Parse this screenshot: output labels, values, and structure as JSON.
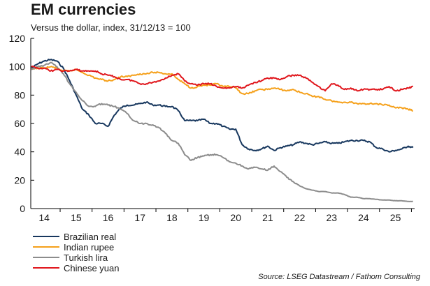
{
  "header": {
    "title": "EM currencies",
    "subtitle": "Versus the dollar, index, 31/12/13 = 100"
  },
  "footer": {
    "source": "Source: LSEG Datastream / Fathom Consulting"
  },
  "chart_data": {
    "type": "line",
    "title": "EM currencies",
    "subtitle": "Versus the dollar, index, 31/12/13 = 100",
    "xlabel": "",
    "ylabel": "",
    "x_domain": [
      2013.58,
      2025.6
    ],
    "ylim": [
      0,
      120
    ],
    "y_ticks": [
      0,
      20,
      40,
      60,
      80,
      100,
      120
    ],
    "x_tick_labels": [
      "14",
      "15",
      "16",
      "17",
      "18",
      "19",
      "20",
      "21",
      "22",
      "23",
      "24",
      "25"
    ],
    "x_tick_positions": [
      2014.0,
      2015.0,
      2016.0,
      2017.0,
      2018.0,
      2019.0,
      2020.0,
      2021.0,
      2022.0,
      2023.0,
      2024.0,
      2025.0
    ],
    "grid": false,
    "legend_position": "bottom-left",
    "series": [
      {
        "name": "Brazilian real",
        "color": "#17375e",
        "x": [
          2013.6,
          2013.8,
          2014.0,
          2014.2,
          2014.4,
          2014.6,
          2014.8,
          2015.0,
          2015.2,
          2015.4,
          2015.6,
          2015.8,
          2016.0,
          2016.2,
          2016.4,
          2016.6,
          2016.8,
          2017.0,
          2017.2,
          2017.4,
          2017.6,
          2017.8,
          2018.0,
          2018.2,
          2018.4,
          2018.6,
          2018.8,
          2019.0,
          2019.2,
          2019.4,
          2019.6,
          2019.8,
          2020.0,
          2020.2,
          2020.4,
          2020.6,
          2020.8,
          2021.0,
          2021.2,
          2021.4,
          2021.6,
          2021.8,
          2022.0,
          2022.2,
          2022.4,
          2022.6,
          2022.8,
          2023.0,
          2023.2,
          2023.4,
          2023.6,
          2023.8,
          2024.0,
          2024.2,
          2024.4,
          2024.6,
          2024.8,
          2025.0,
          2025.2,
          2025.4,
          2025.55
        ],
        "values": [
          99,
          102,
          104,
          105,
          104,
          99,
          90,
          80,
          70,
          66,
          60,
          60,
          58,
          66,
          71,
          73,
          73,
          74,
          75,
          73,
          73,
          72,
          72,
          69,
          62,
          62,
          62,
          63,
          60,
          60,
          58,
          56,
          56,
          45,
          42,
          41,
          42,
          44,
          41,
          43,
          44,
          45,
          47,
          46,
          45,
          46,
          47,
          46,
          46,
          47,
          48,
          48,
          48,
          47,
          43,
          42,
          40,
          41,
          42,
          44,
          43
        ]
      },
      {
        "name": "Indian rupee",
        "color": "#f5a01a",
        "x": [
          2013.6,
          2013.8,
          2014.0,
          2014.2,
          2014.4,
          2014.6,
          2014.8,
          2015.0,
          2015.2,
          2015.4,
          2015.6,
          2015.8,
          2016.0,
          2016.2,
          2016.4,
          2016.6,
          2016.8,
          2017.0,
          2017.2,
          2017.4,
          2017.6,
          2017.8,
          2018.0,
          2018.2,
          2018.4,
          2018.6,
          2018.8,
          2019.0,
          2019.2,
          2019.4,
          2019.6,
          2019.8,
          2020.0,
          2020.2,
          2020.4,
          2020.6,
          2020.8,
          2021.0,
          2021.2,
          2021.4,
          2021.6,
          2021.8,
          2022.0,
          2022.2,
          2022.4,
          2022.6,
          2022.8,
          2023.0,
          2023.2,
          2023.4,
          2023.6,
          2023.8,
          2024.0,
          2024.2,
          2024.4,
          2024.6,
          2024.8,
          2025.0,
          2025.2,
          2025.4,
          2025.55
        ],
        "values": [
          98,
          99,
          99,
          100,
          99,
          97,
          97,
          98,
          96,
          94,
          92,
          91,
          90,
          91,
          93,
          93,
          94,
          95,
          95,
          96,
          96,
          95,
          95,
          91,
          88,
          85,
          86,
          87,
          87,
          88,
          86,
          86,
          85,
          81,
          81,
          83,
          84,
          84,
          85,
          84,
          83,
          84,
          82,
          81,
          79,
          79,
          77,
          76,
          75,
          75,
          75,
          74,
          74,
          74,
          74,
          73,
          73,
          71,
          71,
          70,
          69
        ]
      },
      {
        "name": "Turkish lira",
        "color": "#8c8c8c",
        "x": [
          2013.6,
          2013.8,
          2014.0,
          2014.2,
          2014.4,
          2014.6,
          2014.8,
          2015.0,
          2015.2,
          2015.4,
          2015.6,
          2015.8,
          2016.0,
          2016.2,
          2016.4,
          2016.6,
          2016.8,
          2017.0,
          2017.2,
          2017.4,
          2017.6,
          2017.8,
          2018.0,
          2018.2,
          2018.4,
          2018.6,
          2018.8,
          2019.0,
          2019.2,
          2019.4,
          2019.6,
          2019.8,
          2020.0,
          2020.2,
          2020.4,
          2020.6,
          2020.8,
          2021.0,
          2021.2,
          2021.4,
          2021.6,
          2021.8,
          2022.0,
          2022.2,
          2022.4,
          2022.6,
          2022.8,
          2023.0,
          2023.2,
          2023.4,
          2023.6,
          2023.8,
          2024.0,
          2024.2,
          2024.4,
          2024.6,
          2024.8,
          2025.0,
          2025.2,
          2025.4,
          2025.55
        ],
        "values": [
          98,
          100,
          101,
          103,
          100,
          95,
          88,
          82,
          76,
          72,
          72,
          74,
          73,
          72,
          70,
          67,
          62,
          60,
          60,
          59,
          57,
          53,
          48,
          46,
          38,
          34,
          36,
          37,
          38,
          38,
          36,
          33,
          32,
          30,
          28,
          29,
          28,
          27,
          30,
          26,
          22,
          19,
          16,
          14,
          13,
          12,
          12,
          11,
          11,
          10,
          8,
          8,
          7,
          7,
          6.5,
          6,
          6,
          5.5,
          5.5,
          5,
          5
        ]
      },
      {
        "name": "Chinese yuan",
        "color": "#e0161c",
        "x": [
          2013.6,
          2013.8,
          2014.0,
          2014.2,
          2014.4,
          2014.6,
          2014.8,
          2015.0,
          2015.2,
          2015.4,
          2015.6,
          2015.8,
          2016.0,
          2016.2,
          2016.4,
          2016.6,
          2016.8,
          2017.0,
          2017.2,
          2017.4,
          2017.6,
          2017.8,
          2018.0,
          2018.2,
          2018.4,
          2018.6,
          2018.8,
          2019.0,
          2019.2,
          2019.4,
          2019.6,
          2019.8,
          2020.0,
          2020.2,
          2020.4,
          2020.6,
          2020.8,
          2021.0,
          2021.2,
          2021.4,
          2021.6,
          2021.8,
          2022.0,
          2022.2,
          2022.4,
          2022.6,
          2022.8,
          2023.0,
          2023.2,
          2023.4,
          2023.6,
          2023.8,
          2024.0,
          2024.2,
          2024.4,
          2024.6,
          2024.8,
          2025.0,
          2025.2,
          2025.4,
          2025.55
        ],
        "values": [
          100,
          99,
          99,
          97,
          98,
          97,
          97,
          98,
          97,
          97,
          97,
          95,
          94,
          93,
          91,
          91,
          90,
          88,
          88,
          89,
          90,
          92,
          94,
          95,
          90,
          88,
          87,
          88,
          88,
          86,
          85,
          85,
          86,
          85,
          87,
          89,
          90,
          92,
          92,
          91,
          93,
          94,
          94,
          92,
          89,
          86,
          83,
          88,
          87,
          84,
          85,
          83,
          84,
          84,
          84,
          84,
          86,
          83,
          84,
          85,
          86
        ]
      }
    ]
  }
}
